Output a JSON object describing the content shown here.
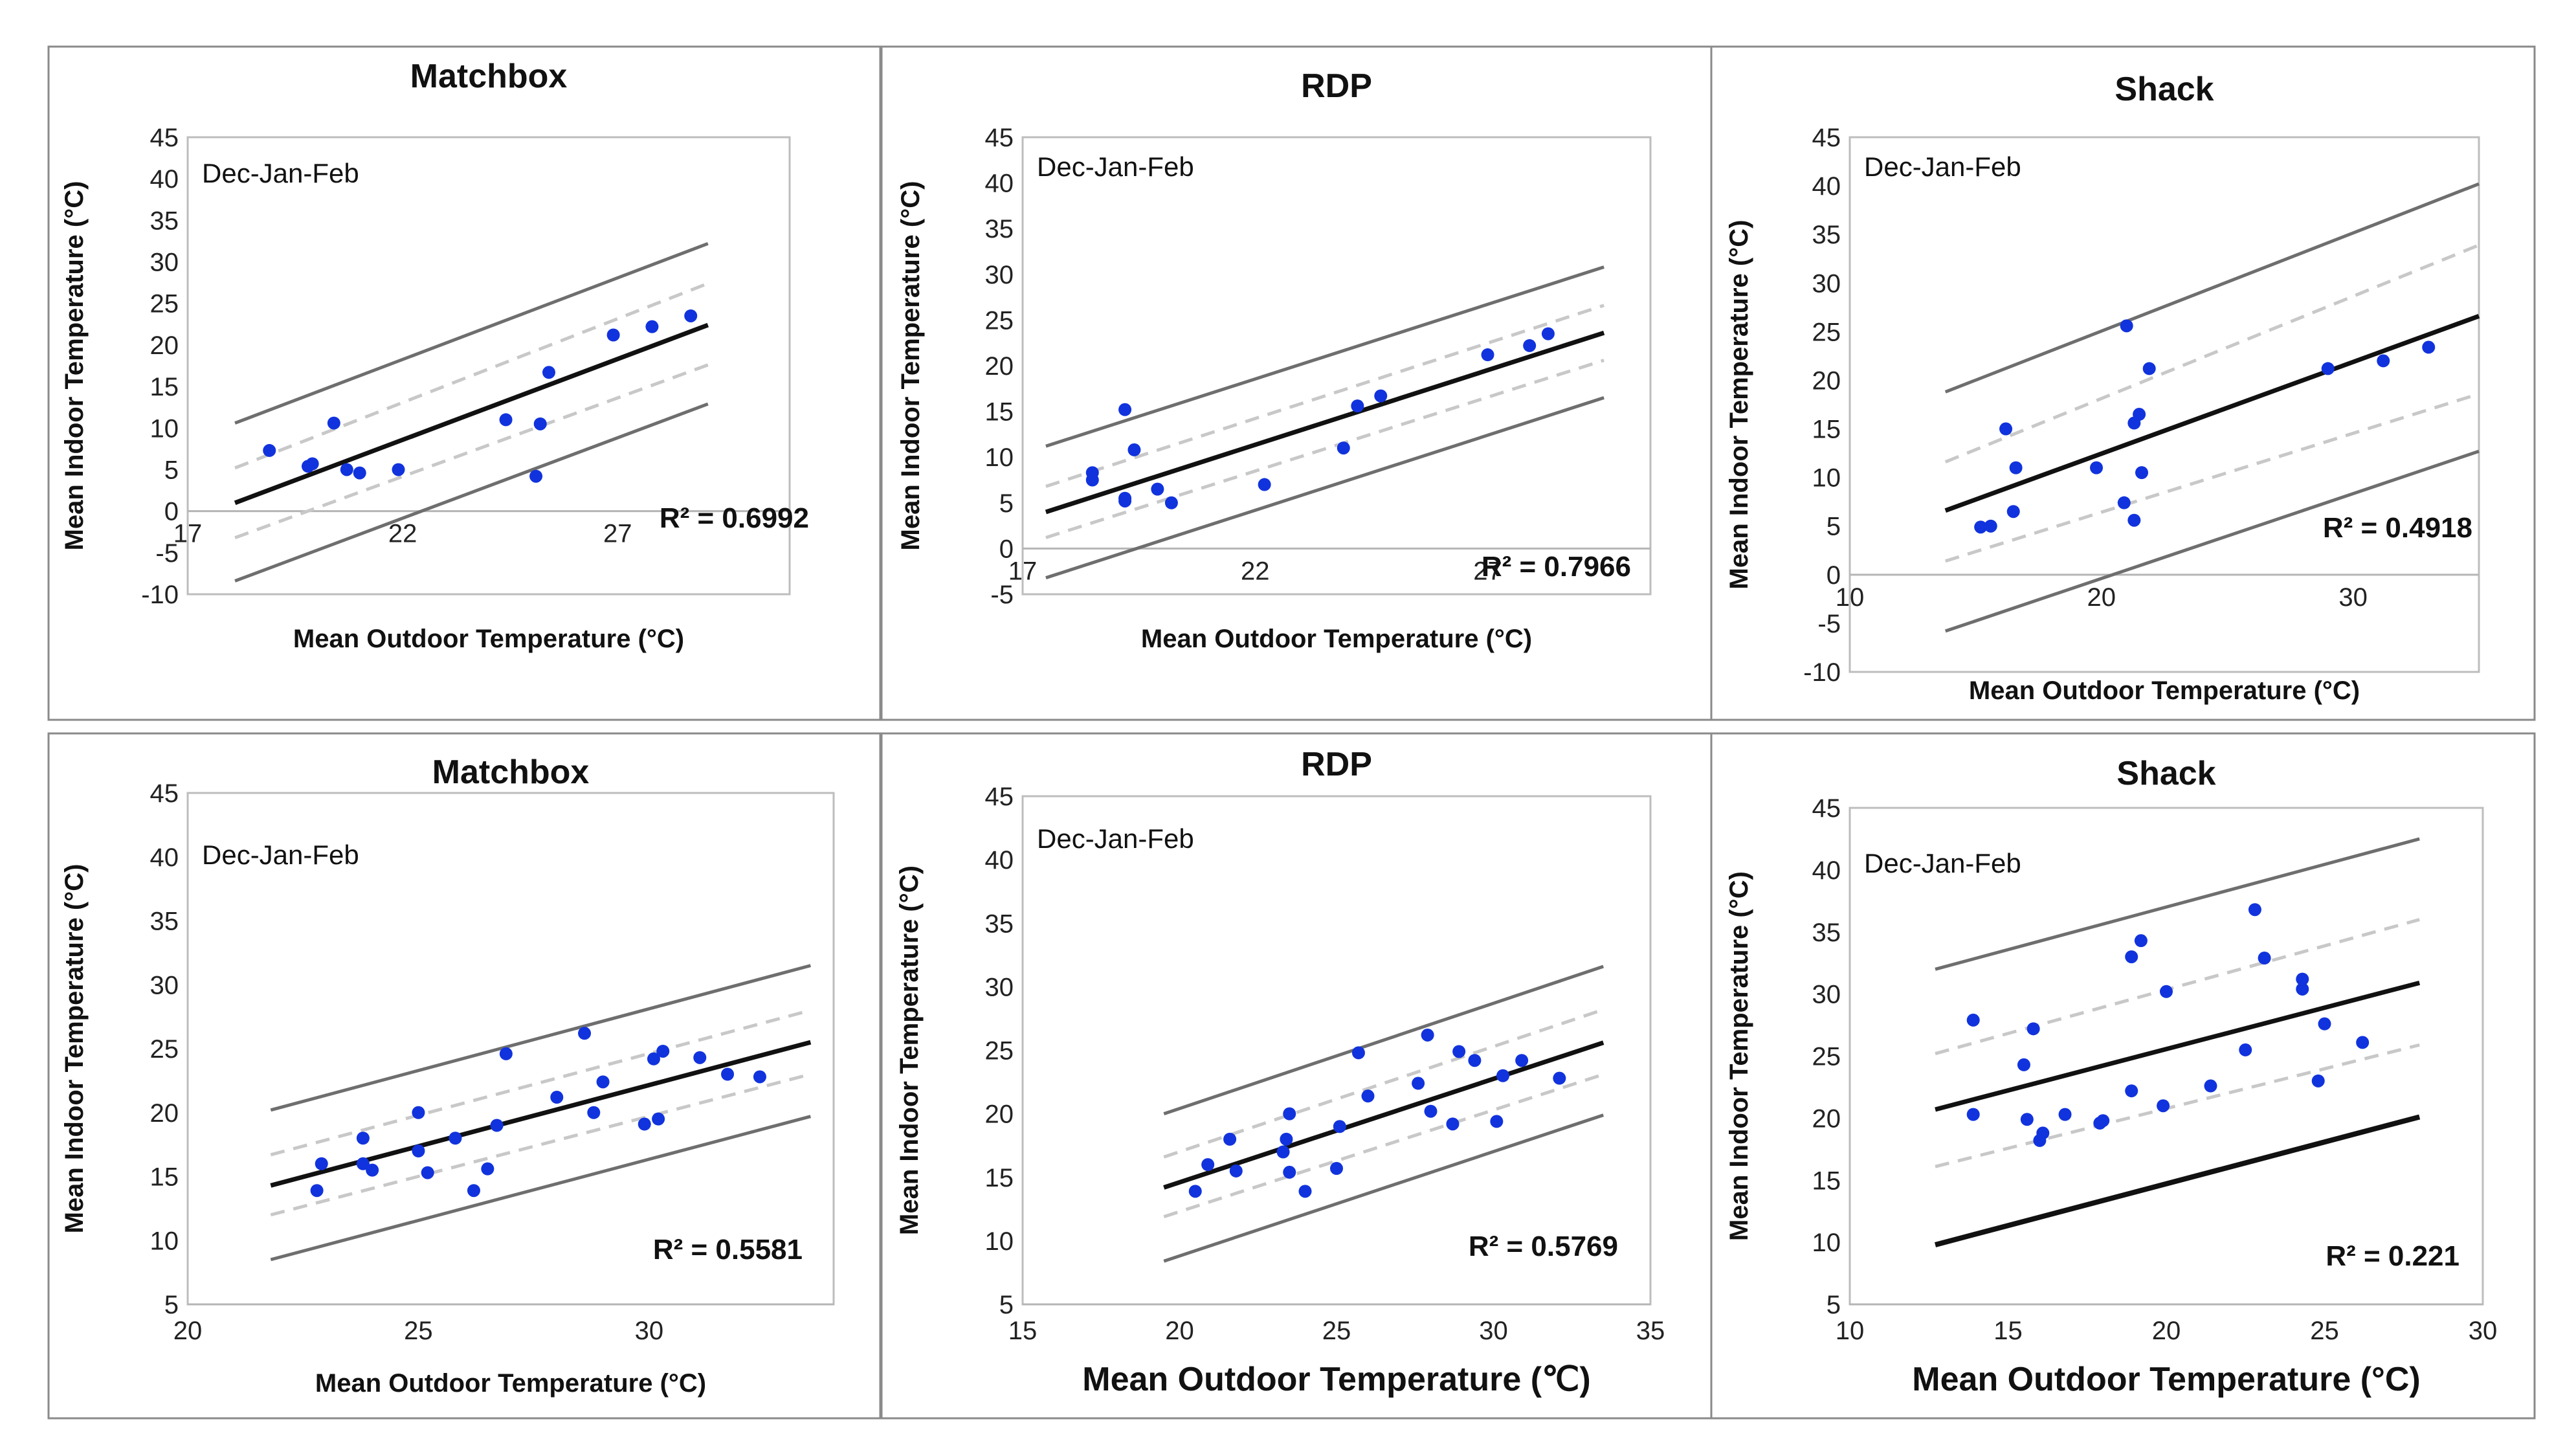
{
  "colors": {
    "points": "#1133dd",
    "regression": "#111111",
    "confidence": "#c8c8c8",
    "prediction": "#6e6e6e"
  },
  "chart_data": [
    {
      "type": "scatter",
      "title": "Matchbox",
      "annotation": "Dec-Jan-Feb",
      "r2_label": "R² = 0.6992",
      "xlabel": "Mean Outdoor Temperature (°C)",
      "ylabel": "Mean Indoor Temperature (°C)",
      "xlim": [
        17,
        31
      ],
      "ylim": [
        -10,
        45
      ],
      "xticks": [
        "17",
        "22",
        "27"
      ],
      "yticks": [
        "-10",
        "-5",
        "0",
        "5",
        "10",
        "15",
        "20",
        "25",
        "30",
        "35",
        "40",
        "45"
      ],
      "x_axis_at_zero": true,
      "points": [
        [
          18.9,
          7.3
        ],
        [
          19.8,
          5.4
        ],
        [
          19.9,
          5.7
        ],
        [
          20.4,
          10.6
        ],
        [
          20.7,
          5.0
        ],
        [
          21.0,
          4.6
        ],
        [
          21.9,
          5.0
        ],
        [
          24.4,
          11.0
        ],
        [
          25.1,
          4.2
        ],
        [
          25.2,
          10.5
        ],
        [
          25.4,
          16.7
        ],
        [
          26.9,
          21.2
        ],
        [
          27.8,
          22.2
        ],
        [
          28.7,
          23.5
        ]
      ],
      "fit": {
        "x0": 18.1,
        "y0": 1.0,
        "x1": 29.1,
        "y1": 22.4
      },
      "conf_upper": {
        "x0": 18.1,
        "y0": 5.2,
        "x1": 29.1,
        "y1": 27.4
      },
      "conf_lower": {
        "x0": 18.1,
        "y0": -3.2,
        "x1": 29.1,
        "y1": 17.6
      },
      "pred_upper": {
        "x0": 18.1,
        "y0": 10.6,
        "x1": 29.1,
        "y1": 32.2
      },
      "pred_lower": {
        "x0": 18.1,
        "y0": -8.4,
        "x1": 29.1,
        "y1": 12.9
      }
    },
    {
      "type": "scatter",
      "title": "RDP",
      "annotation": "Dec-Jan-Feb",
      "r2_label": "R² = 0.7966",
      "xlabel": "Mean Outdoor Temperature (°C)",
      "ylabel": "Mean Indoor Temperature (°C)",
      "xlim": [
        17,
        30.5
      ],
      "ylim": [
        -5,
        45
      ],
      "xticks": [
        "17",
        "22",
        "27"
      ],
      "yticks": [
        "-5",
        "0",
        "5",
        "10",
        "15",
        "20",
        "25",
        "30",
        "35",
        "40",
        "45"
      ],
      "x_axis_at_zero": true,
      "points": [
        [
          18.5,
          7.5
        ],
        [
          18.5,
          8.3
        ],
        [
          19.2,
          5.5
        ],
        [
          19.2,
          15.2
        ],
        [
          19.4,
          10.8
        ],
        [
          19.9,
          6.5
        ],
        [
          20.2,
          5.0
        ],
        [
          22.2,
          7.0
        ],
        [
          23.9,
          11.0
        ],
        [
          24.2,
          15.6
        ],
        [
          24.7,
          16.7
        ],
        [
          27.0,
          21.2
        ],
        [
          27.9,
          22.2
        ],
        [
          28.3,
          23.5
        ],
        [
          19.2,
          5.2
        ]
      ],
      "fit": {
        "x0": 17.5,
        "y0": 4.0,
        "x1": 29.5,
        "y1": 23.6
      },
      "conf_upper": {
        "x0": 17.5,
        "y0": 6.8,
        "x1": 29.5,
        "y1": 26.6
      },
      "conf_lower": {
        "x0": 17.5,
        "y0": 1.2,
        "x1": 29.5,
        "y1": 20.6
      },
      "pred_upper": {
        "x0": 17.5,
        "y0": 11.2,
        "x1": 29.5,
        "y1": 30.8
      },
      "pred_lower": {
        "x0": 17.5,
        "y0": -3.2,
        "x1": 29.5,
        "y1": 16.5
      }
    },
    {
      "type": "scatter",
      "title": "Shack",
      "annotation": "Dec-Jan-Feb",
      "r2_label": "R² = 0.4918",
      "xlabel": "Mean Outdoor Temperature (°C)",
      "ylabel": "Mean Indoor Temperature (°C)",
      "xlim": [
        10,
        35
      ],
      "ylim": [
        -10,
        45
      ],
      "xticks": [
        "10",
        "20",
        "30"
      ],
      "yticks": [
        "-10",
        "-5",
        "0",
        "5",
        "10",
        "15",
        "20",
        "25",
        "30",
        "35",
        "40",
        "45"
      ],
      "x_axis_at_zero": true,
      "points": [
        [
          15.2,
          4.9
        ],
        [
          15.6,
          5.0
        ],
        [
          16.2,
          15.0
        ],
        [
          16.5,
          6.5
        ],
        [
          16.6,
          11.0
        ],
        [
          19.8,
          11.0
        ],
        [
          20.9,
          7.4
        ],
        [
          21.0,
          25.6
        ],
        [
          21.3,
          5.6
        ],
        [
          21.3,
          15.6
        ],
        [
          21.5,
          16.5
        ],
        [
          21.6,
          10.5
        ],
        [
          21.9,
          21.2
        ],
        [
          29.0,
          21.2
        ],
        [
          31.2,
          22.0
        ],
        [
          33.0,
          23.4
        ]
      ],
      "fit": {
        "x0": 13.8,
        "y0": 6.6,
        "x1": 35.0,
        "y1": 26.6
      },
      "conf_upper": {
        "x0": 13.8,
        "y0": 11.6,
        "x1": 35.0,
        "y1": 33.9
      },
      "conf_lower": {
        "x0": 13.8,
        "y0": 1.4,
        "x1": 35.0,
        "y1": 18.6
      },
      "pred_upper": {
        "x0": 13.8,
        "y0": 18.8,
        "x1": 35.0,
        "y1": 40.2
      },
      "pred_lower": {
        "x0": 13.8,
        "y0": -5.8,
        "x1": 35.0,
        "y1": 12.7
      }
    },
    {
      "type": "scatter",
      "title": "Matchbox",
      "annotation": "Dec-Jan-Feb",
      "r2_label": "R² = 0.5581",
      "xlabel": "Mean Outdoor Temperature (°C)",
      "ylabel": "Mean Indoor Temperature (°C)",
      "xlim": [
        20,
        34
      ],
      "ylim": [
        5,
        45
      ],
      "xticks": [
        "20",
        "25",
        "30"
      ],
      "yticks": [
        "5",
        "10",
        "15",
        "20",
        "25",
        "30",
        "35",
        "40",
        "45"
      ],
      "x_axis_at_zero": false,
      "points": [
        [
          22.8,
          13.9
        ],
        [
          22.9,
          16.0
        ],
        [
          23.8,
          16.0
        ],
        [
          23.8,
          18.0
        ],
        [
          24.0,
          15.5
        ],
        [
          25.0,
          17.0
        ],
        [
          25.0,
          20.0
        ],
        [
          25.2,
          15.3
        ],
        [
          25.8,
          18.0
        ],
        [
          26.2,
          13.9
        ],
        [
          26.5,
          15.6
        ],
        [
          26.7,
          19.0
        ],
        [
          26.9,
          24.6
        ],
        [
          28.0,
          21.2
        ],
        [
          28.6,
          26.2
        ],
        [
          28.8,
          20.0
        ],
        [
          29.0,
          22.4
        ],
        [
          29.9,
          19.1
        ],
        [
          30.1,
          24.2
        ],
        [
          30.2,
          19.5
        ],
        [
          30.3,
          24.8
        ],
        [
          31.1,
          24.3
        ],
        [
          31.7,
          23.0
        ],
        [
          32.4,
          22.8
        ]
      ],
      "fit": {
        "x0": 21.8,
        "y0": 14.3,
        "x1": 33.5,
        "y1": 25.5
      },
      "conf_upper": {
        "x0": 21.8,
        "y0": 16.7,
        "x1": 33.5,
        "y1": 28.0
      },
      "conf_lower": {
        "x0": 21.8,
        "y0": 12.0,
        "x1": 33.5,
        "y1": 23.0
      },
      "pred_upper": {
        "x0": 21.8,
        "y0": 20.2,
        "x1": 33.5,
        "y1": 31.5
      },
      "pred_lower": {
        "x0": 21.8,
        "y0": 8.5,
        "x1": 33.5,
        "y1": 19.7
      }
    },
    {
      "type": "scatter",
      "title": "RDP",
      "annotation": "Dec-Jan-Feb",
      "r2_label": "R² = 0.5769",
      "xlabel": "Mean Outdoor Temperature (℃)",
      "ylabel": "Mean Indoor Temperature (°C)",
      "xlim": [
        15,
        35
      ],
      "ylim": [
        5,
        45
      ],
      "xticks": [
        "15",
        "20",
        "25",
        "30",
        "35"
      ],
      "yticks": [
        "5",
        "10",
        "15",
        "20",
        "25",
        "30",
        "35",
        "40",
        "45"
      ],
      "x_axis_at_zero": false,
      "points": [
        [
          20.5,
          13.9
        ],
        [
          20.9,
          16.0
        ],
        [
          21.6,
          18.0
        ],
        [
          21.8,
          15.5
        ],
        [
          23.3,
          17.0
        ],
        [
          23.4,
          18.0
        ],
        [
          23.5,
          20.0
        ],
        [
          23.5,
          15.4
        ],
        [
          24.0,
          13.9
        ],
        [
          25.0,
          15.7
        ],
        [
          25.1,
          19.0
        ],
        [
          25.7,
          24.8
        ],
        [
          26.0,
          21.4
        ],
        [
          27.6,
          22.4
        ],
        [
          27.9,
          26.2
        ],
        [
          28.0,
          20.2
        ],
        [
          28.7,
          19.2
        ],
        [
          28.9,
          24.9
        ],
        [
          29.4,
          24.2
        ],
        [
          30.1,
          19.4
        ],
        [
          30.3,
          23.0
        ],
        [
          30.9,
          24.2
        ],
        [
          32.1,
          22.8
        ]
      ],
      "fit": {
        "x0": 19.5,
        "y0": 14.2,
        "x1": 33.5,
        "y1": 25.6
      },
      "conf_upper": {
        "x0": 19.5,
        "y0": 16.6,
        "x1": 33.5,
        "y1": 28.2
      },
      "conf_lower": {
        "x0": 19.5,
        "y0": 11.9,
        "x1": 33.5,
        "y1": 23.1
      },
      "pred_upper": {
        "x0": 19.5,
        "y0": 20.0,
        "x1": 33.5,
        "y1": 31.6
      },
      "pred_lower": {
        "x0": 19.5,
        "y0": 8.4,
        "x1": 33.5,
        "y1": 19.9
      }
    },
    {
      "type": "scatter",
      "title": "Shack",
      "annotation": "Dec-Jan-Feb",
      "r2_label": "R² = 0.221",
      "xlabel": "Mean Outdoor Temperature (°C)",
      "ylabel": "Mean Indoor Temperature (°C)",
      "xlim": [
        10,
        30
      ],
      "ylim": [
        5,
        45
      ],
      "xticks": [
        "10",
        "15",
        "20",
        "25",
        "30"
      ],
      "yticks": [
        "5",
        "10",
        "15",
        "20",
        "25",
        "30",
        "35",
        "40",
        "45"
      ],
      "x_axis_at_zero": false,
      "points": [
        [
          13.9,
          27.9
        ],
        [
          13.9,
          20.3
        ],
        [
          15.5,
          24.3
        ],
        [
          15.6,
          19.9
        ],
        [
          15.8,
          27.2
        ],
        [
          16.0,
          18.2
        ],
        [
          16.1,
          18.8
        ],
        [
          16.8,
          20.3
        ],
        [
          17.9,
          19.6
        ],
        [
          18.0,
          19.8
        ],
        [
          18.9,
          22.2
        ],
        [
          18.9,
          33.0
        ],
        [
          19.2,
          34.3
        ],
        [
          19.9,
          21.0
        ],
        [
          20.0,
          30.2
        ],
        [
          21.4,
          22.6
        ],
        [
          22.5,
          25.5
        ],
        [
          22.8,
          36.8
        ],
        [
          23.1,
          32.9
        ],
        [
          24.3,
          30.4
        ],
        [
          24.3,
          31.2
        ],
        [
          24.8,
          23.0
        ],
        [
          25.0,
          27.6
        ],
        [
          26.2,
          26.1
        ]
      ],
      "fit": {
        "x0": 12.7,
        "y0": 20.7,
        "x1": 28.0,
        "y1": 30.9
      },
      "conf_upper": {
        "x0": 12.7,
        "y0": 25.2,
        "x1": 28.0,
        "y1": 36.0
      },
      "conf_lower": {
        "x0": 12.7,
        "y0": 16.1,
        "x1": 28.0,
        "y1": 25.9
      },
      "pred_upper": {
        "x0": 12.7,
        "y0": 32.0,
        "x1": 28.0,
        "y1": 42.5
      },
      "pred_lower": {
        "x0": 12.7,
        "y0": 9.8,
        "x1": 28.0,
        "y1": 20.1
      }
    }
  ]
}
